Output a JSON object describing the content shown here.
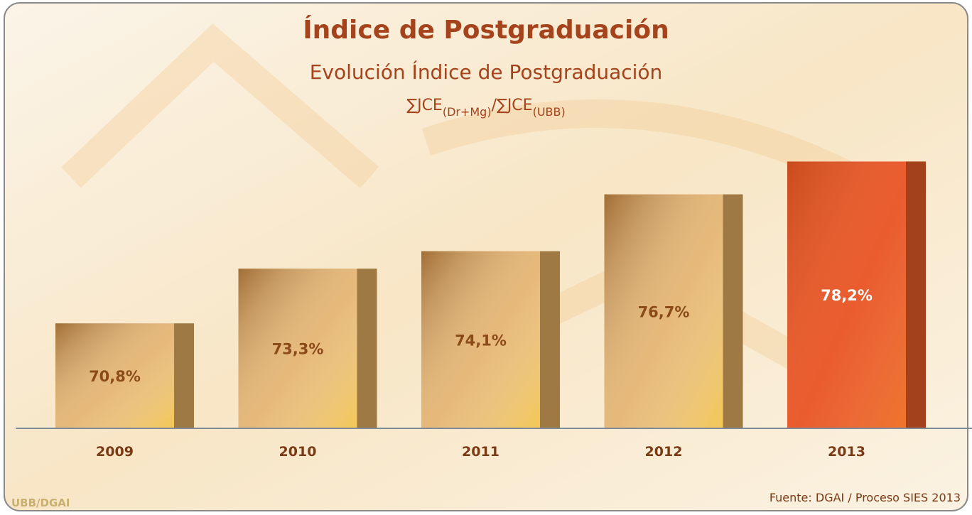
{
  "chart_data": {
    "type": "bar",
    "title": "Índice de Postgraduación",
    "subtitle": "Evolución Índice de Postgraduación",
    "formula": [
      "∑JCE",
      "(Dr+Mg)",
      "/∑JCE",
      "(UBB)"
    ],
    "categories": [
      "2009",
      "2010",
      "2011",
      "2012",
      "2013"
    ],
    "values": [
      70.8,
      73.3,
      74.1,
      76.7,
      78.2
    ],
    "value_labels": [
      "70,8%",
      "73,3%",
      "74,1%",
      "76,7%",
      "78,2%"
    ],
    "colors": [
      "#e2ad62",
      "#e2ad62",
      "#e2ad62",
      "#e2ad62",
      "#e8501e"
    ],
    "ylim": [
      66,
      80
    ],
    "source": "Fuente: DGAI / Proceso SIES 2013",
    "logo": "UBB/DGAI"
  }
}
